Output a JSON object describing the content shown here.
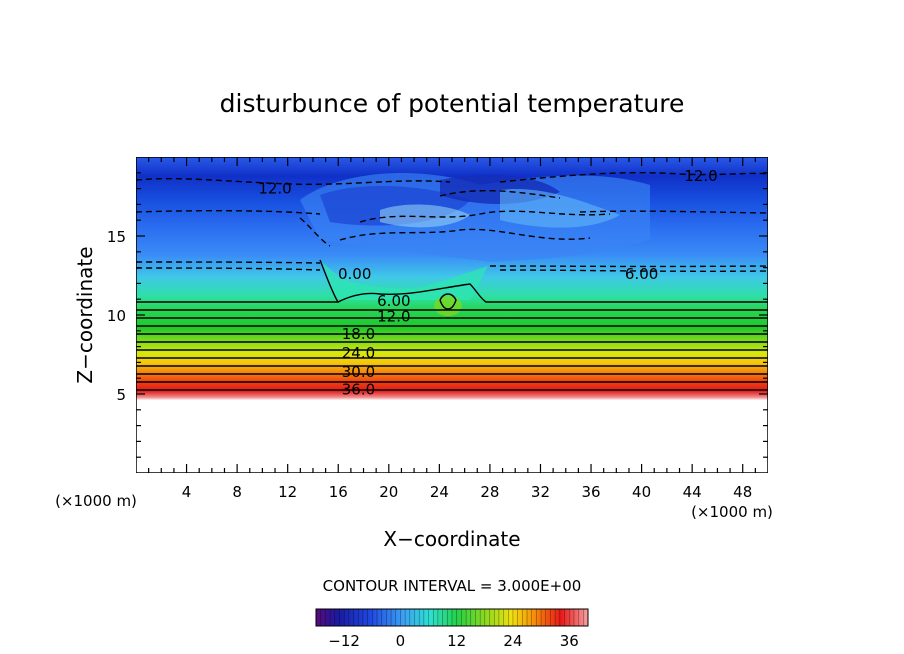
{
  "chart_data": {
    "type": "heatmap",
    "title": "disturbunce of potential temperature",
    "xlabel": "X−coordinate",
    "ylabel": "Z−coordinate",
    "x_unit": "(×1000 m)",
    "y_unit": "(×1000 m)",
    "xlim": [
      0,
      50
    ],
    "ylim": [
      0,
      20
    ],
    "x_ticks": [
      4,
      8,
      12,
      16,
      20,
      24,
      28,
      32,
      36,
      40,
      44,
      48
    ],
    "y_ticks": [
      5,
      10,
      15
    ],
    "contour_interval_label": "CONTOUR INTERVAL = 3.000E+00",
    "contour_labels": [
      {
        "text": "12.0",
        "x": 11,
        "z": 18.0
      },
      {
        "text": "12.0",
        "x": 44.7,
        "z": 18.8
      },
      {
        "text": "6.00",
        "x": 40,
        "z": 12.6
      },
      {
        "text": "0.00",
        "x": 17.3,
        "z": 12.6
      },
      {
        "text": "6.00",
        "x": 20.4,
        "z": 10.9
      },
      {
        "text": "12.0",
        "x": 20.4,
        "z": 9.9
      },
      {
        "text": "18.0",
        "x": 17.6,
        "z": 8.8
      },
      {
        "text": "24.0",
        "x": 17.6,
        "z": 7.6
      },
      {
        "text": "30.0",
        "x": 17.6,
        "z": 6.4
      },
      {
        "text": "36.0",
        "x": 17.6,
        "z": 5.3
      }
    ],
    "colorbar": {
      "range": [
        -18,
        40
      ],
      "ticks": [
        -12,
        0,
        12,
        24,
        36
      ],
      "tick_labels": [
        "−12",
        "0",
        "12",
        "24",
        "36"
      ]
    }
  }
}
